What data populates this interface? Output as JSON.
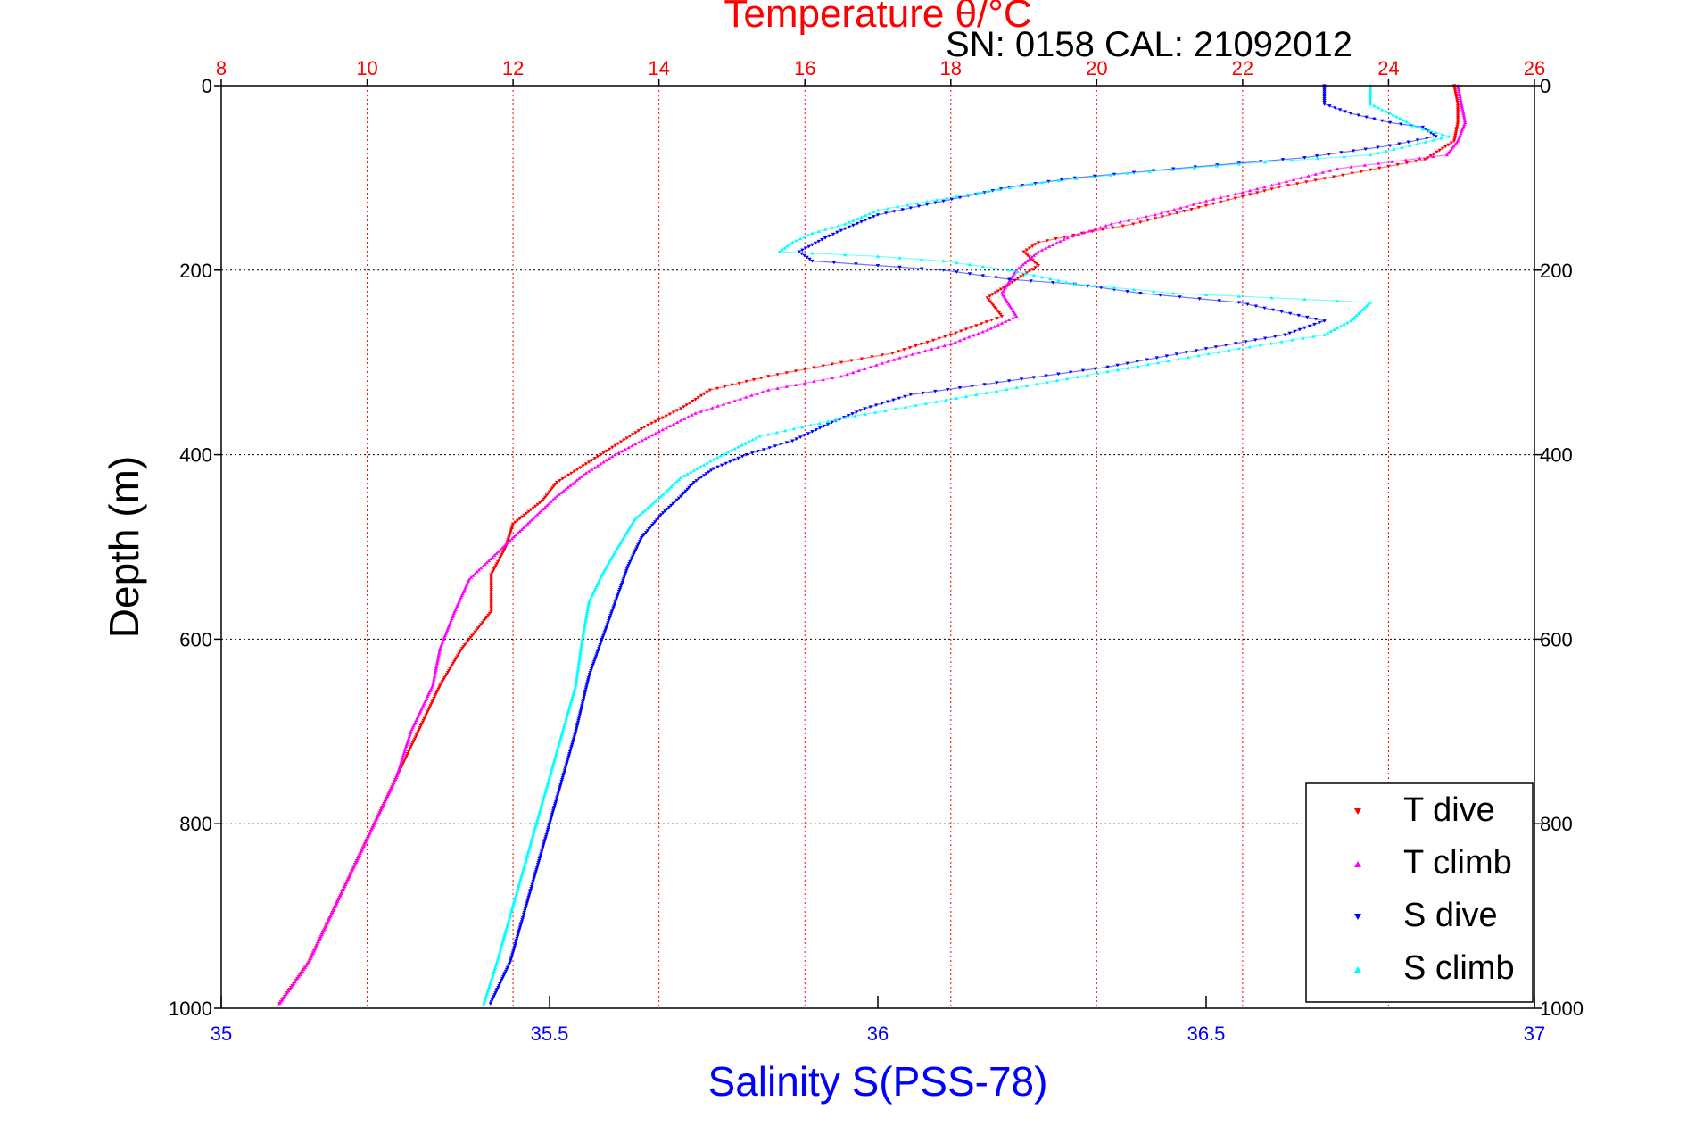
{
  "chart_data": {
    "type": "scatter",
    "title": "Temperature θ/°C",
    "subtitle": "SN: 0158  CAL: 21092012",
    "xlabel": "Salinity S(PSS-78)",
    "x2label": "Temperature θ/°C",
    "ylabel": "Depth (m)",
    "xlim": [
      35,
      37
    ],
    "x2lim": [
      8,
      26
    ],
    "ylim": [
      0,
      1000
    ],
    "y_reversed": true,
    "x_ticks": [
      "35",
      "35.5",
      "36",
      "36.5",
      "37"
    ],
    "x2_ticks": [
      "8",
      "10",
      "12",
      "14",
      "16",
      "18",
      "20",
      "22",
      "24",
      "26"
    ],
    "y_ticks": [
      "0",
      "200",
      "400",
      "600",
      "800",
      "1000"
    ],
    "grid": true,
    "legend_position": "bottom-right",
    "colors": {
      "temperature_axis": "#ff0000",
      "salinity_axis": "#0000ff",
      "t_dive": "#ff0000",
      "t_climb": "#ff00ff",
      "s_dive": "#0000ff",
      "s_climb": "#00ffff",
      "grid_temperature": "#ff0000",
      "grid_depth": "#000000"
    },
    "series": [
      {
        "name": "T dive",
        "axis": "temperature",
        "points": [
          [
            24.9,
            0
          ],
          [
            24.95,
            20
          ],
          [
            24.95,
            40
          ],
          [
            24.9,
            60
          ],
          [
            24.5,
            80
          ],
          [
            23.5,
            95
          ],
          [
            22.5,
            110
          ],
          [
            21.5,
            130
          ],
          [
            20.5,
            150
          ],
          [
            19.8,
            160
          ],
          [
            19.2,
            170
          ],
          [
            19.0,
            180
          ],
          [
            19.2,
            195
          ],
          [
            18.8,
            215
          ],
          [
            18.5,
            230
          ],
          [
            18.7,
            250
          ],
          [
            18.0,
            270
          ],
          [
            17.2,
            290
          ],
          [
            16.5,
            300
          ],
          [
            15.5,
            315
          ],
          [
            14.7,
            330
          ],
          [
            14.3,
            350
          ],
          [
            13.8,
            370
          ],
          [
            13.4,
            390
          ],
          [
            13.0,
            410
          ],
          [
            12.6,
            430
          ],
          [
            12.4,
            450
          ],
          [
            12.0,
            475
          ],
          [
            11.9,
            500
          ],
          [
            11.7,
            530
          ],
          [
            11.7,
            570
          ],
          [
            11.3,
            610
          ],
          [
            11.0,
            650
          ],
          [
            10.7,
            700
          ],
          [
            10.4,
            750
          ],
          [
            10.1,
            800
          ],
          [
            9.8,
            850
          ],
          [
            9.5,
            900
          ],
          [
            9.2,
            950
          ],
          [
            8.8,
            995
          ]
        ]
      },
      {
        "name": "T climb",
        "axis": "temperature",
        "points": [
          [
            24.95,
            0
          ],
          [
            25.0,
            20
          ],
          [
            25.05,
            40
          ],
          [
            24.95,
            60
          ],
          [
            24.8,
            75
          ],
          [
            23.3,
            90
          ],
          [
            22.3,
            110
          ],
          [
            21.5,
            125
          ],
          [
            20.8,
            140
          ],
          [
            20.2,
            150
          ],
          [
            19.6,
            165
          ],
          [
            19.2,
            180
          ],
          [
            18.9,
            200
          ],
          [
            18.7,
            225
          ],
          [
            18.9,
            250
          ],
          [
            18.5,
            265
          ],
          [
            18.0,
            280
          ],
          [
            17.3,
            295
          ],
          [
            16.5,
            315
          ],
          [
            15.5,
            330
          ],
          [
            14.5,
            355
          ],
          [
            14.0,
            375
          ],
          [
            13.4,
            400
          ],
          [
            13.0,
            420
          ],
          [
            12.6,
            445
          ],
          [
            12.2,
            475
          ],
          [
            11.8,
            505
          ],
          [
            11.4,
            535
          ],
          [
            11.2,
            570
          ],
          [
            11.0,
            610
          ],
          [
            10.9,
            650
          ],
          [
            10.6,
            700
          ],
          [
            10.4,
            750
          ],
          [
            10.1,
            800
          ],
          [
            9.8,
            850
          ],
          [
            9.5,
            900
          ],
          [
            9.2,
            950
          ],
          [
            8.8,
            995
          ]
        ]
      },
      {
        "name": "S dive",
        "axis": "salinity",
        "points": [
          [
            36.68,
            0
          ],
          [
            36.68,
            20
          ],
          [
            36.72,
            30
          ],
          [
            36.78,
            40
          ],
          [
            36.83,
            45
          ],
          [
            36.85,
            55
          ],
          [
            36.78,
            65
          ],
          [
            36.65,
            78
          ],
          [
            36.45,
            90
          ],
          [
            36.3,
            100
          ],
          [
            36.2,
            110
          ],
          [
            36.1,
            125
          ],
          [
            36.0,
            140
          ],
          [
            35.95,
            155
          ],
          [
            35.92,
            165
          ],
          [
            35.88,
            180
          ],
          [
            35.9,
            190
          ],
          [
            36.0,
            195
          ],
          [
            36.1,
            200
          ],
          [
            36.2,
            210
          ],
          [
            36.3,
            215
          ],
          [
            36.4,
            225
          ],
          [
            36.55,
            235
          ],
          [
            36.68,
            255
          ],
          [
            36.62,
            270
          ],
          [
            36.5,
            285
          ],
          [
            36.35,
            305
          ],
          [
            36.2,
            320
          ],
          [
            36.05,
            335
          ],
          [
            35.98,
            350
          ],
          [
            35.93,
            365
          ],
          [
            35.87,
            385
          ],
          [
            35.8,
            400
          ],
          [
            35.75,
            415
          ],
          [
            35.72,
            430
          ],
          [
            35.7,
            445
          ],
          [
            35.67,
            465
          ],
          [
            35.64,
            490
          ],
          [
            35.62,
            520
          ],
          [
            35.6,
            560
          ],
          [
            35.58,
            600
          ],
          [
            35.56,
            640
          ],
          [
            35.54,
            700
          ],
          [
            35.52,
            750
          ],
          [
            35.5,
            800
          ],
          [
            35.48,
            850
          ],
          [
            35.46,
            900
          ],
          [
            35.44,
            950
          ],
          [
            35.41,
            995
          ]
        ]
      },
      {
        "name": "S climb",
        "axis": "salinity",
        "points": [
          [
            36.75,
            0
          ],
          [
            36.75,
            20
          ],
          [
            36.78,
            30
          ],
          [
            36.82,
            45
          ],
          [
            36.87,
            55
          ],
          [
            36.75,
            75
          ],
          [
            36.55,
            85
          ],
          [
            36.38,
            95
          ],
          [
            36.25,
            105
          ],
          [
            36.12,
            120
          ],
          [
            36.0,
            135
          ],
          [
            35.95,
            150
          ],
          [
            35.9,
            160
          ],
          [
            35.87,
            170
          ],
          [
            35.85,
            180
          ],
          [
            36.0,
            185
          ],
          [
            36.1,
            190
          ],
          [
            36.2,
            200
          ],
          [
            36.3,
            215
          ],
          [
            36.45,
            225
          ],
          [
            36.6,
            230
          ],
          [
            36.75,
            235
          ],
          [
            36.72,
            255
          ],
          [
            36.68,
            270
          ],
          [
            36.55,
            285
          ],
          [
            36.35,
            310
          ],
          [
            36.15,
            335
          ],
          [
            35.95,
            360
          ],
          [
            35.82,
            380
          ],
          [
            35.75,
            405
          ],
          [
            35.7,
            425
          ],
          [
            35.67,
            445
          ],
          [
            35.63,
            470
          ],
          [
            35.6,
            505
          ],
          [
            35.58,
            530
          ],
          [
            35.56,
            560
          ],
          [
            35.55,
            600
          ],
          [
            35.54,
            650
          ],
          [
            35.52,
            700
          ],
          [
            35.5,
            750
          ],
          [
            35.48,
            800
          ],
          [
            35.46,
            850
          ],
          [
            35.44,
            900
          ],
          [
            35.42,
            950
          ],
          [
            35.4,
            995
          ]
        ]
      }
    ]
  }
}
